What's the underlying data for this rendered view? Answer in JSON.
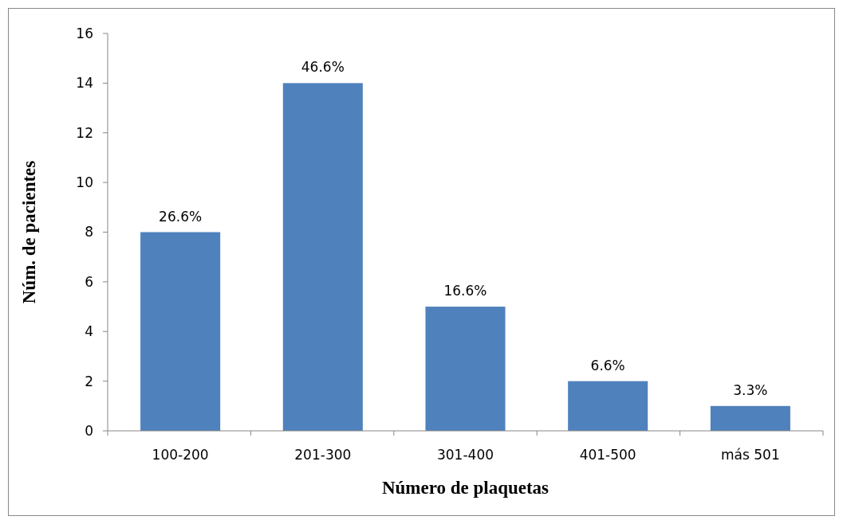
{
  "chart_data": {
    "type": "bar",
    "xlabel": "Número de plaquetas",
    "ylabel": "Núm. de pacientes",
    "categories": [
      "100-200",
      "201-300",
      "301-400",
      "401-500",
      "más 501"
    ],
    "values": [
      8,
      14,
      5,
      2,
      1
    ],
    "annotations": [
      {
        "text": "26.6%",
        "x": "100-200",
        "y": 8
      },
      {
        "text": "46.6%",
        "x": "201-300",
        "y": 14
      },
      {
        "text": "16.6%",
        "x": "301-400",
        "y": 5
      },
      {
        "text": "6.6%",
        "x": "401-500",
        "y": 2
      },
      {
        "text": "3.3%",
        "x": "más 501",
        "y": 1
      }
    ],
    "color": "#4f81bd",
    "ylim": [
      0,
      16
    ],
    "yticks": [
      0,
      2,
      4,
      6,
      8,
      10,
      12,
      14,
      16
    ]
  }
}
